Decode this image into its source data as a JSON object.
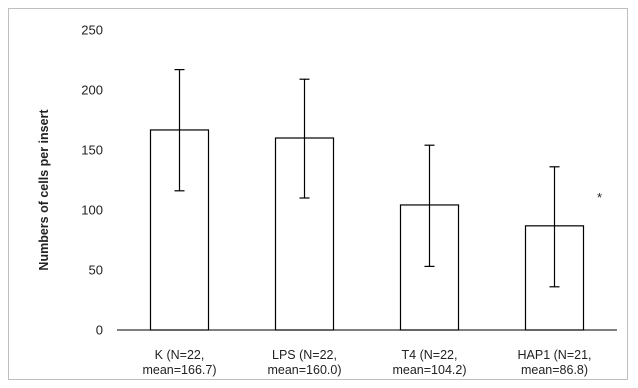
{
  "chart_data": {
    "type": "bar",
    "ylabel": "Numbers of cells per insert",
    "ylim": [
      0,
      250
    ],
    "yticks": [
      0,
      50,
      100,
      150,
      200,
      250
    ],
    "grid": false,
    "legend": "none",
    "categories": [
      {
        "line1": "K (N=22,",
        "line2": "mean=166.7)"
      },
      {
        "line1": "LPS (N=22,",
        "line2": "mean=160.0)"
      },
      {
        "line1": "T4 (N=22,",
        "line2": "mean=104.2)"
      },
      {
        "line1": "HAP1 (N=21,",
        "line2": "mean=86.8)"
      }
    ],
    "values": [
      166.7,
      160.0,
      104.2,
      86.8
    ],
    "error_bars": [
      {
        "low": 116,
        "high": 217
      },
      {
        "low": 110,
        "high": 209
      },
      {
        "low": 53,
        "high": 154
      },
      {
        "low": 36,
        "high": 136
      }
    ],
    "annotations": [
      {
        "category_index": 3,
        "text": "*"
      }
    ],
    "colors": {
      "bar_fill": "#ffffff",
      "bar_stroke": "#000000"
    }
  }
}
